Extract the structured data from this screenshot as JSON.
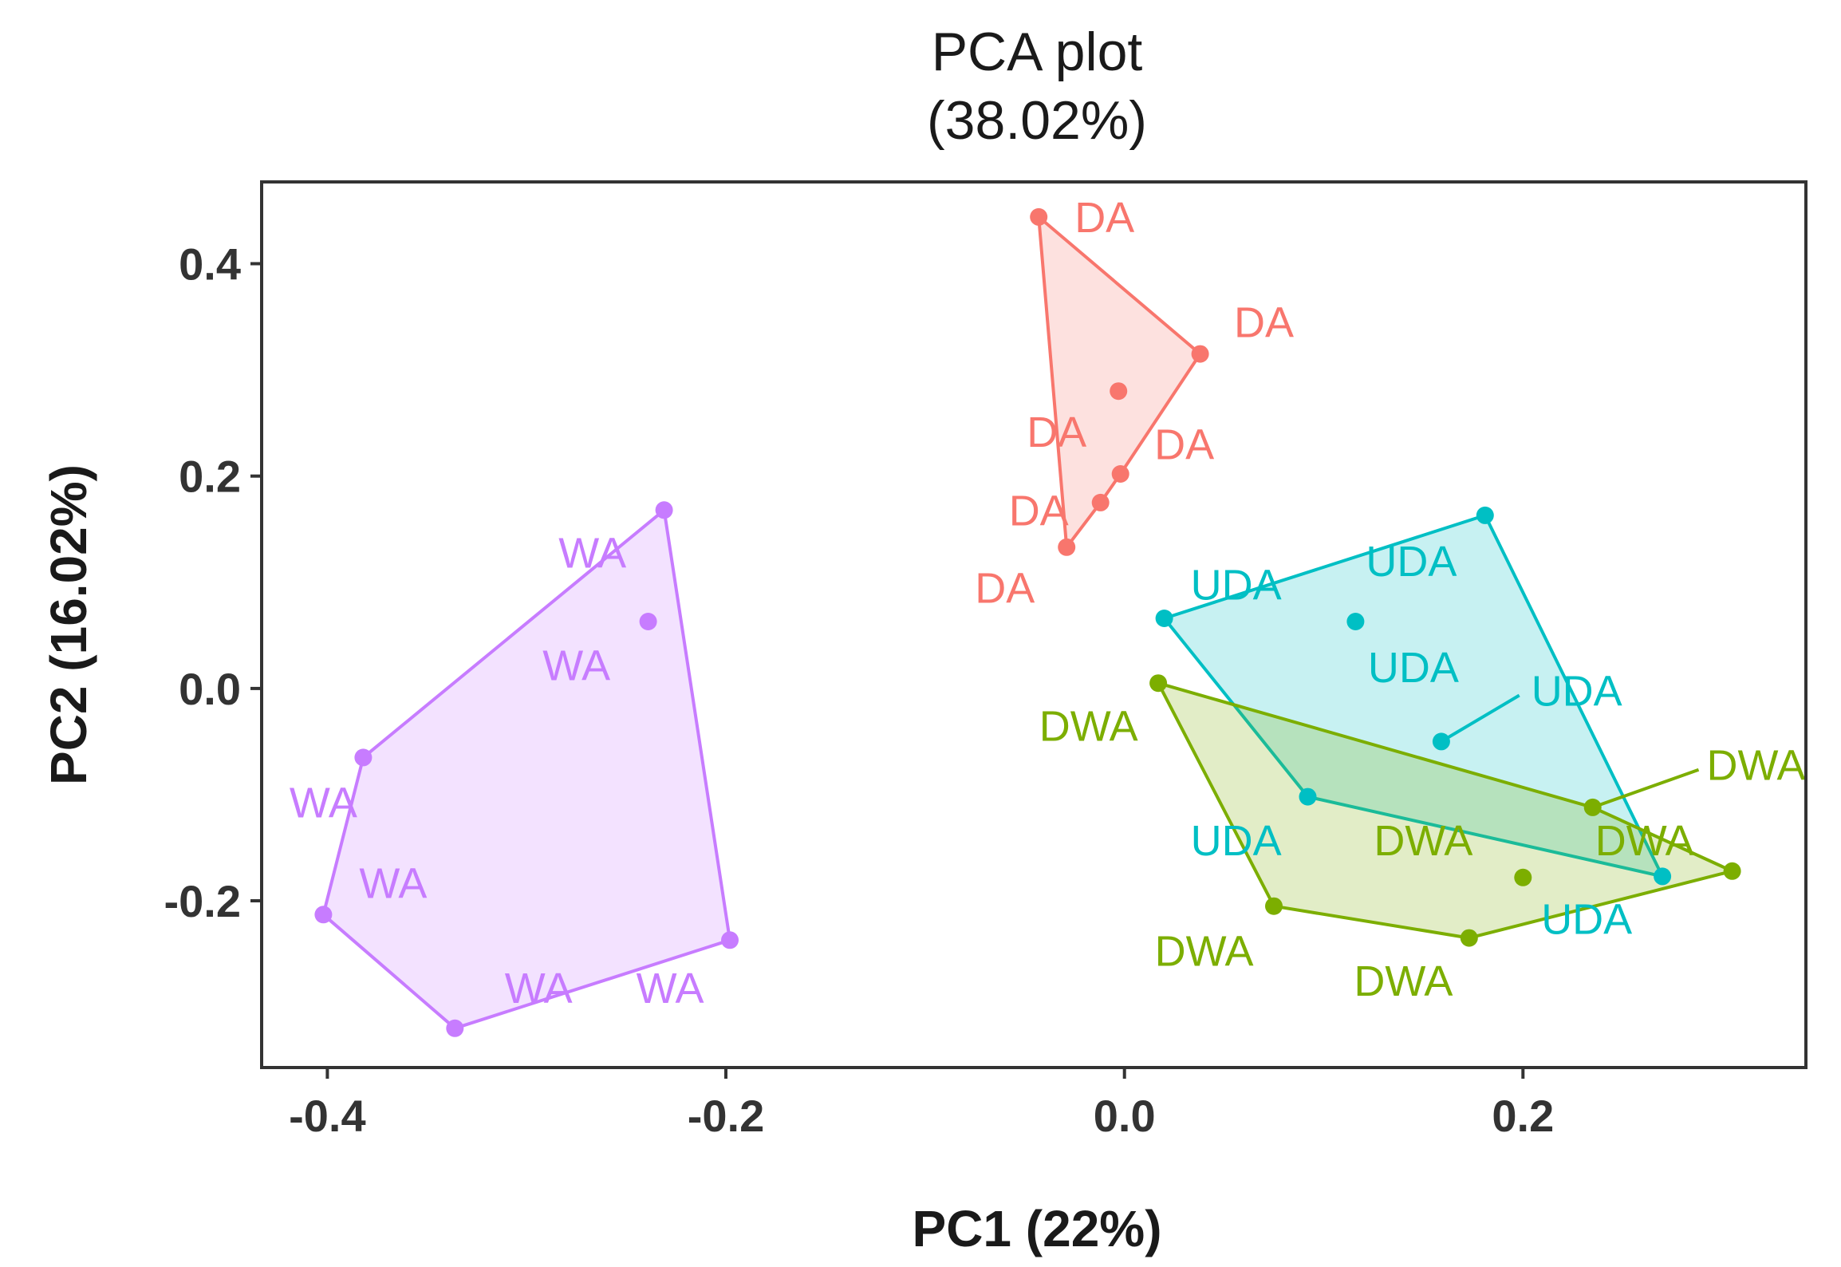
{
  "chart_data": {
    "type": "scatter",
    "title": "PCA plot",
    "subtitle": "(38.02%)",
    "xlabel": "PC1 (22%)",
    "ylabel": "PC2 (16.02%)",
    "xlim": [
      -0.433,
      0.342
    ],
    "ylim": [
      -0.357,
      0.477
    ],
    "xticks": [
      -0.4,
      -0.2,
      0.0,
      0.2
    ],
    "xtick_labels": [
      "-0.4",
      "-0.2",
      "0.0",
      "0.2"
    ],
    "yticks": [
      0.4,
      0.2,
      0.0,
      -0.2
    ],
    "ytick_labels": [
      "0.4",
      "0.2",
      "0.0",
      "-0.2"
    ],
    "grid": false,
    "legend": "none",
    "hulls": true,
    "series": [
      {
        "name": "WA",
        "color": "#C77CFF",
        "points": [
          {
            "x": -0.231,
            "y": 0.168,
            "label": "WA",
            "lx": -0.267,
            "ly": 0.128
          },
          {
            "x": -0.239,
            "y": 0.063,
            "label": "WA",
            "lx": -0.275,
            "ly": 0.022
          },
          {
            "x": -0.382,
            "y": -0.065,
            "label": "WA",
            "lx": -0.402,
            "ly": -0.107
          },
          {
            "x": -0.402,
            "y": -0.213,
            "label": "WA",
            "lx": -0.367,
            "ly": -0.183
          },
          {
            "x": -0.336,
            "y": -0.32,
            "label": "WA",
            "lx": -0.294,
            "ly": -0.282
          },
          {
            "x": -0.198,
            "y": -0.237,
            "label": "WA",
            "lx": -0.228,
            "ly": -0.282
          }
        ]
      },
      {
        "name": "DA",
        "color": "#F8766D",
        "points": [
          {
            "x": -0.043,
            "y": 0.444,
            "label": "DA",
            "lx": -0.01,
            "ly": 0.444
          },
          {
            "x": 0.038,
            "y": 0.315,
            "label": "DA",
            "lx": 0.07,
            "ly": 0.345
          },
          {
            "x": -0.003,
            "y": 0.28,
            "label": "DA",
            "lx": -0.034,
            "ly": 0.242
          },
          {
            "x": -0.002,
            "y": 0.202,
            "label": "DA",
            "lx": 0.03,
            "ly": 0.23
          },
          {
            "x": -0.012,
            "y": 0.175,
            "label": "DA",
            "lx": -0.043,
            "ly": 0.168
          },
          {
            "x": -0.029,
            "y": 0.133,
            "label": "DA",
            "lx": -0.06,
            "ly": 0.095
          }
        ]
      },
      {
        "name": "UDA",
        "color": "#00BFC4",
        "points": [
          {
            "x": 0.181,
            "y": 0.163,
            "label": "UDA",
            "lx": 0.144,
            "ly": 0.12
          },
          {
            "x": 0.02,
            "y": 0.066,
            "label": "UDA",
            "lx": 0.056,
            "ly": 0.098
          },
          {
            "x": 0.116,
            "y": 0.063,
            "label": "UDA",
            "lx": 0.145,
            "ly": 0.02
          },
          {
            "x": 0.159,
            "y": -0.05,
            "label": "UDA",
            "lx": 0.227,
            "ly": -0.002,
            "leader": true
          },
          {
            "x": 0.092,
            "y": -0.102,
            "label": "UDA",
            "lx": 0.056,
            "ly": -0.143
          },
          {
            "x": 0.27,
            "y": -0.177,
            "label": "UDA",
            "lx": 0.232,
            "ly": -0.217
          }
        ]
      },
      {
        "name": "DWA",
        "color": "#7CAE00",
        "points": [
          {
            "x": 0.017,
            "y": 0.005,
            "label": "DWA",
            "lx": -0.018,
            "ly": -0.035
          },
          {
            "x": 0.235,
            "y": -0.112,
            "label": "DWA",
            "lx": 0.317,
            "ly": -0.072,
            "leader": true
          },
          {
            "x": 0.2,
            "y": -0.178,
            "label": "DWA",
            "lx": 0.15,
            "ly": -0.143
          },
          {
            "x": 0.305,
            "y": -0.172,
            "label": "DWA",
            "lx": 0.261,
            "ly": -0.143
          },
          {
            "x": 0.075,
            "y": -0.205,
            "label": "DWA",
            "lx": 0.04,
            "ly": -0.247
          },
          {
            "x": 0.173,
            "y": -0.235,
            "label": "DWA",
            "lx": 0.14,
            "ly": -0.275
          }
        ]
      }
    ]
  }
}
